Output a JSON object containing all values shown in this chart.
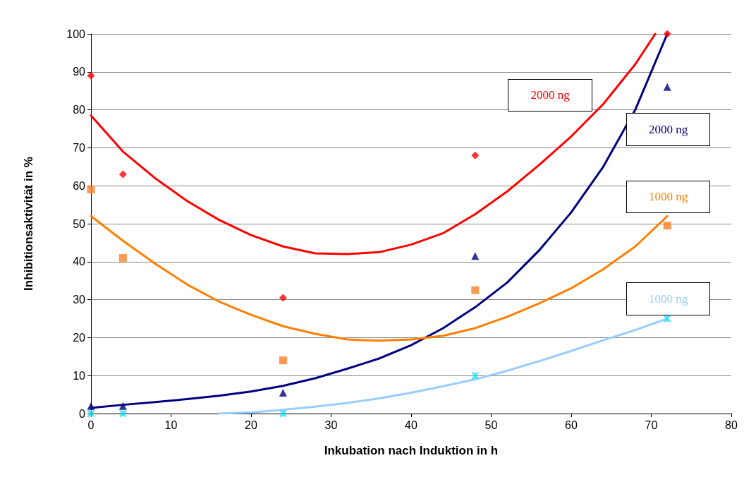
{
  "chart_data": {
    "type": "scatter",
    "xlabel": "Inkubation nach Induktion in h",
    "ylabel": "Inhibitionsaktivität in %",
    "xlim": [
      0,
      80
    ],
    "xticks": [
      0,
      10,
      20,
      30,
      40,
      50,
      60,
      70,
      80
    ],
    "ylim": [
      0,
      100
    ],
    "yticks": [
      0,
      10,
      20,
      30,
      40,
      50,
      60,
      70,
      80,
      90,
      100
    ],
    "grid": "y",
    "legend": false,
    "series": [
      {
        "marker": "diamond",
        "color": "#ff0000",
        "x": [
          0,
          4,
          24,
          48,
          72
        ],
        "values": [
          89,
          63,
          30.5,
          68,
          100
        ]
      },
      {
        "marker": "square",
        "color": "#ff7f27",
        "x": [
          0,
          4,
          24,
          48,
          72
        ],
        "values": [
          59,
          41,
          14,
          32.5,
          49.5
        ]
      },
      {
        "marker": "triangle",
        "color": "#000080",
        "x": [
          0,
          4,
          24,
          48,
          72
        ],
        "values": [
          2,
          2,
          5.5,
          41.5,
          86
        ]
      },
      {
        "marker": "cross",
        "color": "#00e5ff",
        "x": [
          0,
          4,
          24,
          48,
          72
        ],
        "values": [
          0,
          0,
          0,
          10,
          25
        ]
      },
      {
        "type": "line",
        "name": "2000 ng",
        "marker": "none",
        "color": "#ff0000",
        "x": [
          0,
          4,
          8,
          12,
          16,
          20,
          24,
          28,
          32,
          36,
          40,
          44,
          48,
          52,
          56,
          60,
          64,
          68,
          70.5
        ],
        "values": [
          78.5,
          69,
          62,
          56,
          51,
          47,
          44,
          42.2,
          42,
          42.5,
          44.5,
          47.5,
          52.5,
          58.5,
          65.5,
          73,
          81.5,
          92,
          100
        ]
      },
      {
        "type": "line",
        "name": "2000 ng",
        "marker": "none",
        "color": "#000080",
        "x": [
          0,
          4,
          8,
          12,
          16,
          20,
          24,
          28,
          32,
          36,
          40,
          44,
          48,
          52,
          56,
          60,
          64,
          68,
          72
        ],
        "values": [
          1.5,
          2.3,
          3,
          3.8,
          4.7,
          5.8,
          7.3,
          9.3,
          11.8,
          14.5,
          18,
          22.5,
          28,
          34.5,
          43,
          53,
          65,
          80,
          100
        ]
      },
      {
        "type": "line",
        "name": "1000 ng",
        "marker": "none",
        "color": "#ff7f00",
        "x": [
          0,
          4,
          8,
          12,
          16,
          20,
          24,
          28,
          32,
          36,
          40,
          44,
          48,
          52,
          56,
          60,
          64,
          68,
          72
        ],
        "values": [
          52,
          45.5,
          39.5,
          34,
          29.5,
          26,
          23,
          21,
          19.5,
          19.2,
          19.5,
          20.5,
          22.5,
          25.5,
          29,
          33,
          38,
          44,
          52
        ]
      },
      {
        "type": "line",
        "name": "1000 ng",
        "marker": "none",
        "color": "#99ccff",
        "x": [
          16,
          20,
          24,
          28,
          32,
          36,
          40,
          44,
          48,
          52,
          56,
          60,
          64,
          68,
          72
        ],
        "values": [
          0,
          0.3,
          1,
          1.8,
          2.8,
          4,
          5.5,
          7.2,
          9,
          11.3,
          13.8,
          16.5,
          19.3,
          22,
          25
        ]
      }
    ]
  }
}
